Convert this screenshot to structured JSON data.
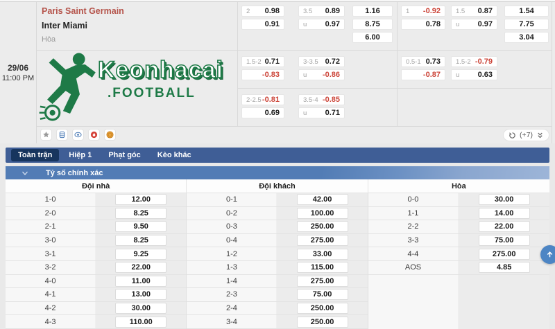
{
  "match": {
    "date": "29/06",
    "time": "11:00 PM",
    "home_team": "Paris Saint Germain",
    "away_team": "Inter Miami",
    "draw_label": "Hòa"
  },
  "logo": {
    "title": "Keonhacai",
    "subtitle": ".FOOTBALL"
  },
  "odds_board": {
    "more_label": "(+7)",
    "cells": [
      {
        "row": 0,
        "col": 0,
        "slot": 0,
        "kind": "pair",
        "items": [
          {
            "label": "2",
            "value": "0.98"
          },
          {
            "label": "",
            "value": "0.91"
          }
        ]
      },
      {
        "row": 0,
        "col": 0,
        "slot": 1,
        "kind": "pair",
        "items": [
          {
            "label": "3.5",
            "value": "0.89"
          },
          {
            "label": "u",
            "value": "0.97"
          }
        ]
      },
      {
        "row": 0,
        "col": 0,
        "slot": 2,
        "kind": "stack",
        "items": [
          {
            "value": "1.16"
          },
          {
            "value": "8.75"
          },
          {
            "value": "6.00"
          }
        ]
      },
      {
        "row": 0,
        "col": 1,
        "slot": 0,
        "kind": "pair",
        "items": [
          {
            "label": "1",
            "value": "-0.92"
          },
          {
            "label": "",
            "value": "0.78"
          }
        ]
      },
      {
        "row": 0,
        "col": 1,
        "slot": 1,
        "kind": "pair",
        "items": [
          {
            "label": "1.5",
            "value": "0.87"
          },
          {
            "label": "u",
            "value": "0.97"
          }
        ]
      },
      {
        "row": 0,
        "col": 1,
        "slot": 2,
        "kind": "stack",
        "items": [
          {
            "value": "1.54"
          },
          {
            "value": "7.75"
          },
          {
            "value": "3.04"
          }
        ]
      },
      {
        "row": 1,
        "col": 0,
        "slot": 0,
        "kind": "pair",
        "items": [
          {
            "label": "1.5-2",
            "value": "0.71"
          },
          {
            "label": "",
            "value": "-0.83"
          }
        ]
      },
      {
        "row": 1,
        "col": 0,
        "slot": 1,
        "kind": "pair",
        "items": [
          {
            "label": "3-3.5",
            "value": "0.72"
          },
          {
            "label": "u",
            "value": "-0.86"
          }
        ]
      },
      {
        "row": 1,
        "col": 1,
        "slot": 0,
        "kind": "pair",
        "items": [
          {
            "label": "0.5-1",
            "value": "0.73"
          },
          {
            "label": "",
            "value": "-0.87"
          }
        ]
      },
      {
        "row": 1,
        "col": 1,
        "slot": 1,
        "kind": "pair",
        "items": [
          {
            "label": "1.5-2",
            "value": "-0.79"
          },
          {
            "label": "u",
            "value": "0.63"
          }
        ]
      },
      {
        "row": 2,
        "col": 0,
        "slot": 0,
        "kind": "pair",
        "items": [
          {
            "label": "2-2.5",
            "value": "-0.81"
          },
          {
            "label": "",
            "value": "0.69"
          }
        ]
      },
      {
        "row": 2,
        "col": 0,
        "slot": 1,
        "kind": "pair",
        "items": [
          {
            "label": "3.5-4",
            "value": "-0.85"
          },
          {
            "label": "u",
            "value": "0.71"
          }
        ]
      }
    ]
  },
  "toolbar_icons": [
    {
      "name": "star-icon"
    },
    {
      "name": "keg-icon"
    },
    {
      "name": "eye-icon"
    },
    {
      "name": "fire-icon"
    },
    {
      "name": "coin-icon"
    }
  ],
  "tabs": [
    {
      "label": "Toàn trận",
      "selected": true
    },
    {
      "label": "Hiệp 1",
      "selected": false
    },
    {
      "label": "Phạt góc",
      "selected": false
    },
    {
      "label": "Kèo khác",
      "selected": false
    }
  ],
  "section": {
    "title": "Tỷ số chính xác"
  },
  "score_table": {
    "row_count": 10,
    "columns": [
      {
        "header": "Đội nhà",
        "rows": [
          [
            "1-0",
            "12.00"
          ],
          [
            "2-0",
            "8.25"
          ],
          [
            "2-1",
            "9.50"
          ],
          [
            "3-0",
            "8.25"
          ],
          [
            "3-1",
            "9.25"
          ],
          [
            "3-2",
            "22.00"
          ],
          [
            "4-0",
            "11.00"
          ],
          [
            "4-1",
            "13.00"
          ],
          [
            "4-2",
            "30.00"
          ],
          [
            "4-3",
            "110.00"
          ]
        ]
      },
      {
        "header": "Đội khách",
        "rows": [
          [
            "0-1",
            "42.00"
          ],
          [
            "0-2",
            "100.00"
          ],
          [
            "0-3",
            "250.00"
          ],
          [
            "0-4",
            "275.00"
          ],
          [
            "1-2",
            "33.00"
          ],
          [
            "1-3",
            "115.00"
          ],
          [
            "1-4",
            "275.00"
          ],
          [
            "2-3",
            "75.00"
          ],
          [
            "2-4",
            "250.00"
          ],
          [
            "3-4",
            "250.00"
          ]
        ]
      },
      {
        "header": "Hòa",
        "rows": [
          [
            "0-0",
            "30.00"
          ],
          [
            "1-1",
            "14.00"
          ],
          [
            "2-2",
            "22.00"
          ],
          [
            "3-3",
            "75.00"
          ],
          [
            "4-4",
            "275.00"
          ],
          [
            "AOS",
            "4.85"
          ]
        ]
      }
    ]
  },
  "colors": {
    "accent_blue": "#3f5e96",
    "tab_selected": "#17355e",
    "header_blue": "#527cb5",
    "brand_green": "#1e7a47",
    "negative_red": "#cc4539",
    "home_team_red": "#b5544b",
    "scroll_button_blue": "#4d85c4"
  }
}
